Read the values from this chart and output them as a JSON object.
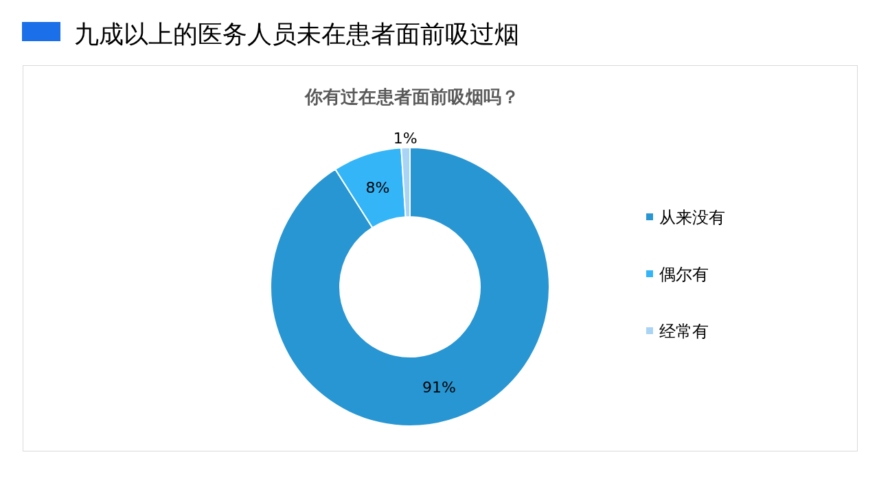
{
  "chart_data": {
    "type": "donut",
    "title": "九成以上的医务人员未在患者面前吸过烟",
    "subtitle": "你有过在患者面前吸烟吗？",
    "categories": [
      "从来没有",
      "偶尔有",
      "经常有"
    ],
    "values": [
      91,
      8,
      1
    ],
    "colors": [
      "#2896d3",
      "#33b5f8",
      "#a9d4f5"
    ],
    "value_labels": [
      "91%",
      "8%",
      "1%"
    ],
    "legend": "right"
  }
}
